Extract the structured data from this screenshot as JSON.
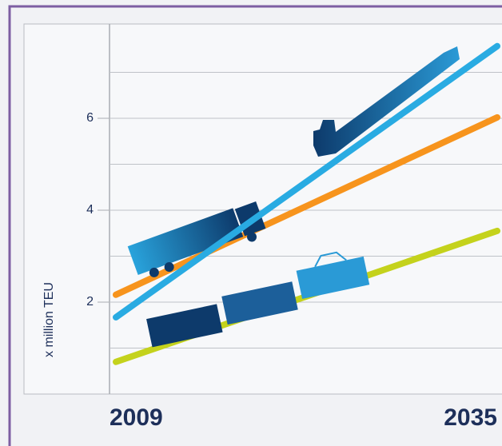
{
  "chart_data": {
    "type": "line",
    "y_label": "x million TEU",
    "x": [
      2009,
      2035
    ],
    "xlim": [
      2009,
      2035
    ],
    "xticks": [
      2009,
      2035
    ],
    "ylim": [
      0,
      8
    ],
    "yticks": [
      2,
      4,
      6
    ],
    "minor_yticks": [
      1,
      3,
      5,
      7
    ],
    "grid": true,
    "series": [
      {
        "color": "#29abe2",
        "values": [
          1.67,
          7.57
        ]
      },
      {
        "color": "#f7941d",
        "values": [
          2.16,
          6.02
        ]
      },
      {
        "color": "#c4d21c",
        "values": [
          0.7,
          3.55
        ]
      }
    ]
  }
}
